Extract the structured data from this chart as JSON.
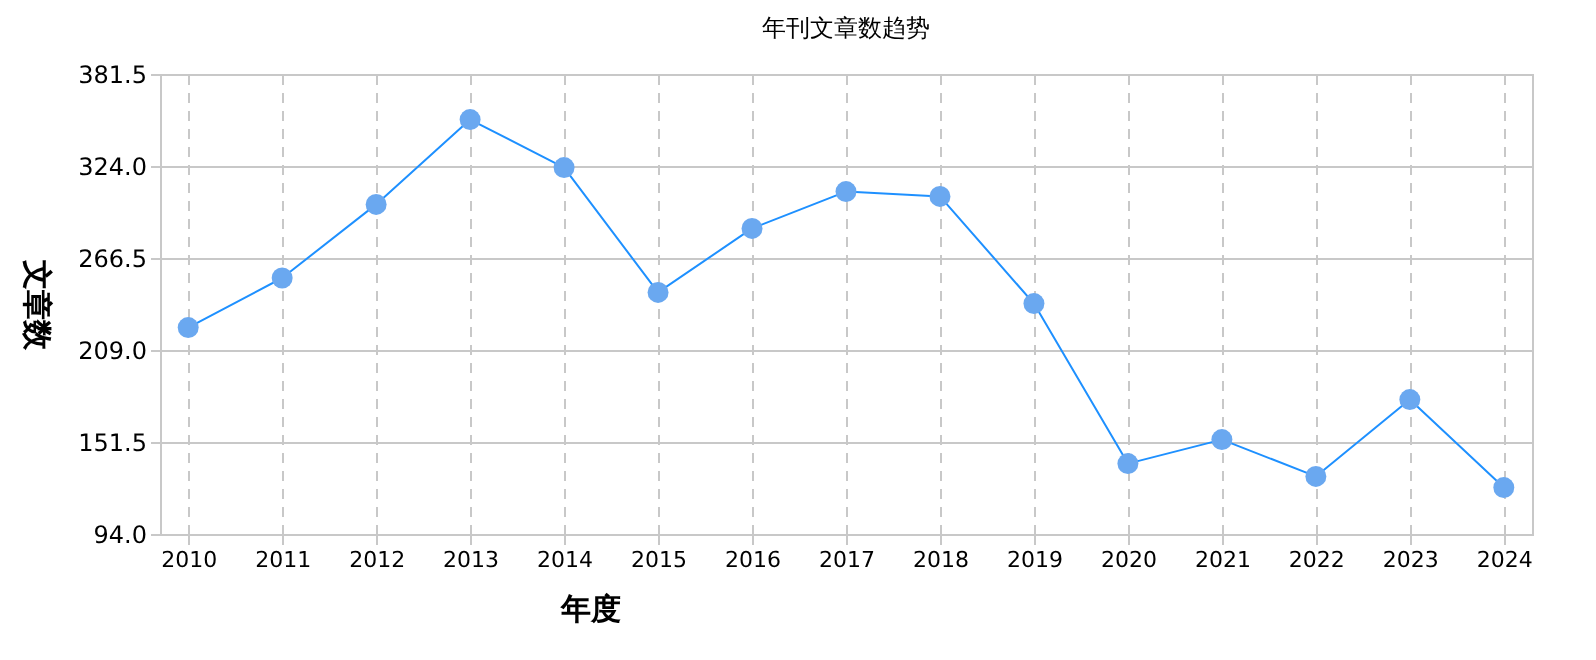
{
  "chart_data": {
    "type": "line",
    "title": "年刊文章数趋势",
    "xlabel": "年度",
    "ylabel": "文章数",
    "categories": [
      "2010",
      "2011",
      "2012",
      "2013",
      "2014",
      "2015",
      "2016",
      "2017",
      "2018",
      "2019",
      "2020",
      "2021",
      "2022",
      "2023",
      "2024"
    ],
    "series": [
      {
        "color": "#1e90ff",
        "values": [
          223,
          254,
          300,
          353,
          323,
          245,
          285,
          308,
          305,
          238,
          138,
          153,
          130,
          178,
          123
        ]
      }
    ],
    "ylim": [
      94,
      381.5
    ],
    "yticks": [
      {
        "value": 94,
        "label": "94.0"
      },
      {
        "value": 151.5,
        "label": "151.5"
      },
      {
        "value": 209,
        "label": "209.0"
      },
      {
        "value": 266.5,
        "label": "266.5"
      },
      {
        "value": 324,
        "label": "324.0"
      },
      {
        "value": 381.5,
        "label": "381.5"
      }
    ],
    "grid": true,
    "marker": "circle",
    "line_style": "solid"
  }
}
